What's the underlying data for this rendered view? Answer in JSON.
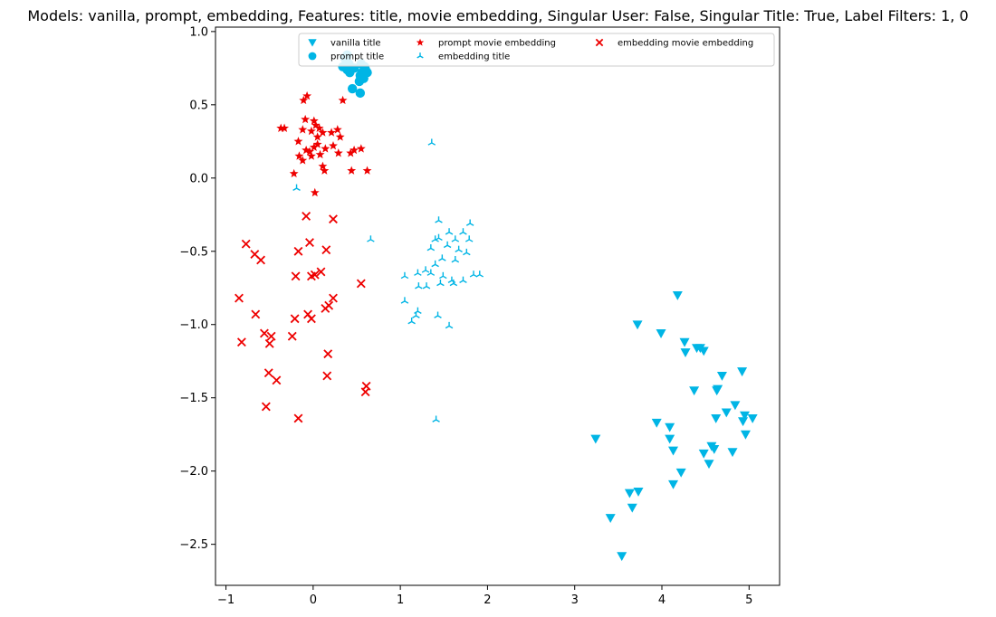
{
  "chart_data": {
    "type": "scatter",
    "title": "Models: vanilla, prompt, embedding, Features: title, movie embedding, Singular User: False, Singular Title: True, Label Filters: 1, 0",
    "xlabel": "",
    "ylabel": "",
    "xlim": [
      -1.12,
      5.35
    ],
    "ylim": [
      -2.78,
      1.03
    ],
    "xticks": [
      -1,
      0,
      1,
      2,
      3,
      4,
      5
    ],
    "xtick_labels": [
      "−1",
      "0",
      "1",
      "2",
      "3",
      "4",
      "5"
    ],
    "yticks": [
      0.5,
      0.0,
      -0.5,
      -1.0,
      -1.5,
      -2.0,
      -2.5
    ],
    "ytick_labels": [
      "0.5",
      "0.0",
      "−0.5",
      "−1.0",
      "−1.5",
      "−2.0",
      "−2.5"
    ],
    "yticks_extra": [
      1.0
    ],
    "ytick_labels_extra": [
      "1.0"
    ],
    "grid": false,
    "legend_position": "top-right",
    "legend_columns": 3,
    "series": [
      {
        "name": "vanilla title",
        "marker": "triangle-down",
        "color": "#00B5E5",
        "points": [
          [
            4.18,
            -0.8
          ],
          [
            3.72,
            -1.0
          ],
          [
            3.99,
            -1.06
          ],
          [
            4.26,
            -1.12
          ],
          [
            4.4,
            -1.16
          ],
          [
            4.44,
            -1.16
          ],
          [
            4.48,
            -1.18
          ],
          [
            4.27,
            -1.19
          ],
          [
            4.92,
            -1.32
          ],
          [
            4.69,
            -1.35
          ],
          [
            4.37,
            -1.45
          ],
          [
            4.64,
            -1.44
          ],
          [
            4.63,
            -1.45
          ],
          [
            4.84,
            -1.55
          ],
          [
            4.74,
            -1.6
          ],
          [
            4.95,
            -1.62
          ],
          [
            5.04,
            -1.64
          ],
          [
            4.62,
            -1.64
          ],
          [
            4.93,
            -1.66
          ],
          [
            3.94,
            -1.67
          ],
          [
            4.09,
            -1.7
          ],
          [
            4.96,
            -1.75
          ],
          [
            3.24,
            -1.78
          ],
          [
            4.09,
            -1.78
          ],
          [
            4.57,
            -1.83
          ],
          [
            4.6,
            -1.85
          ],
          [
            4.13,
            -1.86
          ],
          [
            4.81,
            -1.87
          ],
          [
            4.48,
            -1.88
          ],
          [
            4.54,
            -1.95
          ],
          [
            4.22,
            -2.01
          ],
          [
            4.13,
            -2.09
          ],
          [
            3.73,
            -2.14
          ],
          [
            3.63,
            -2.15
          ],
          [
            3.66,
            -2.25
          ],
          [
            3.41,
            -2.32
          ],
          [
            3.54,
            -2.58
          ]
        ]
      },
      {
        "name": "prompt title",
        "marker": "circle",
        "color": "#00B5E5",
        "points": [
          [
            0.36,
            0.82
          ],
          [
            0.38,
            0.8
          ],
          [
            0.41,
            0.78
          ],
          [
            0.34,
            0.76
          ],
          [
            0.39,
            0.74
          ],
          [
            0.42,
            0.72
          ],
          [
            0.55,
            0.78
          ],
          [
            0.59,
            0.76
          ],
          [
            0.6,
            0.74
          ],
          [
            0.56,
            0.72
          ],
          [
            0.54,
            0.7
          ],
          [
            0.58,
            0.68
          ],
          [
            0.53,
            0.66
          ],
          [
            0.47,
            0.75
          ],
          [
            0.45,
            0.61
          ],
          [
            0.54,
            0.58
          ],
          [
            0.62,
            0.72
          ],
          [
            0.39,
            0.84
          ]
        ]
      },
      {
        "name": "prompt movie embedding",
        "marker": "star",
        "color": "#EE0000",
        "points": [
          [
            -0.07,
            0.56
          ],
          [
            -0.11,
            0.53
          ],
          [
            0.34,
            0.53
          ],
          [
            -0.33,
            0.34
          ],
          [
            -0.37,
            0.34
          ],
          [
            0.01,
            0.39
          ],
          [
            -0.09,
            0.4
          ],
          [
            0.03,
            0.36
          ],
          [
            0.07,
            0.34
          ],
          [
            -0.12,
            0.33
          ],
          [
            -0.02,
            0.32
          ],
          [
            0.28,
            0.33
          ],
          [
            0.21,
            0.31
          ],
          [
            0.11,
            0.31
          ],
          [
            0.05,
            0.28
          ],
          [
            0.31,
            0.28
          ],
          [
            -0.17,
            0.25
          ],
          [
            0.05,
            0.23
          ],
          [
            0.01,
            0.21
          ],
          [
            0.23,
            0.22
          ],
          [
            0.14,
            0.2
          ],
          [
            -0.04,
            0.18
          ],
          [
            -0.08,
            0.19
          ],
          [
            0.55,
            0.2
          ],
          [
            0.47,
            0.19
          ],
          [
            0.43,
            0.17
          ],
          [
            0.29,
            0.17
          ],
          [
            -0.02,
            0.15
          ],
          [
            0.08,
            0.16
          ],
          [
            -0.16,
            0.15
          ],
          [
            -0.12,
            0.12
          ],
          [
            0.11,
            0.08
          ],
          [
            0.13,
            0.05
          ],
          [
            -0.22,
            0.03
          ],
          [
            0.44,
            0.05
          ],
          [
            0.62,
            0.05
          ],
          [
            0.02,
            -0.1
          ]
        ]
      },
      {
        "name": "embedding title",
        "marker": "tri-up",
        "color": "#00B5E5",
        "points": [
          [
            1.36,
            0.24
          ],
          [
            -0.19,
            -0.07
          ],
          [
            1.44,
            -0.29
          ],
          [
            1.8,
            -0.31
          ],
          [
            1.72,
            -0.37
          ],
          [
            1.56,
            -0.37
          ],
          [
            1.4,
            -0.42
          ],
          [
            1.44,
            -0.41
          ],
          [
            1.63,
            -0.42
          ],
          [
            1.79,
            -0.42
          ],
          [
            1.35,
            -0.48
          ],
          [
            1.54,
            -0.46
          ],
          [
            1.67,
            -0.49
          ],
          [
            1.76,
            -0.51
          ],
          [
            1.63,
            -0.56
          ],
          [
            1.48,
            -0.55
          ],
          [
            1.4,
            -0.59
          ],
          [
            1.29,
            -0.63
          ],
          [
            1.2,
            -0.65
          ],
          [
            1.35,
            -0.65
          ],
          [
            1.05,
            -0.67
          ],
          [
            1.49,
            -0.67
          ],
          [
            1.84,
            -0.66
          ],
          [
            1.91,
            -0.66
          ],
          [
            1.59,
            -0.7
          ],
          [
            1.61,
            -0.72
          ],
          [
            1.72,
            -0.7
          ],
          [
            1.46,
            -0.72
          ],
          [
            1.21,
            -0.74
          ],
          [
            1.3,
            -0.74
          ],
          [
            1.05,
            -0.84
          ],
          [
            1.2,
            -0.91
          ],
          [
            1.18,
            -0.94
          ],
          [
            1.43,
            -0.94
          ],
          [
            1.13,
            -0.98
          ],
          [
            1.56,
            -1.01
          ],
          [
            0.66,
            -0.42
          ],
          [
            1.41,
            -1.65
          ]
        ]
      },
      {
        "name": "embedding movie embedding",
        "marker": "x",
        "color": "#EE0000",
        "points": [
          [
            -0.08,
            -0.26
          ],
          [
            0.23,
            -0.28
          ],
          [
            -0.77,
            -0.45
          ],
          [
            -0.04,
            -0.44
          ],
          [
            0.15,
            -0.49
          ],
          [
            -0.67,
            -0.52
          ],
          [
            -0.17,
            -0.5
          ],
          [
            -0.6,
            -0.56
          ],
          [
            0.09,
            -0.64
          ],
          [
            -0.02,
            -0.67
          ],
          [
            0.02,
            -0.66
          ],
          [
            -0.2,
            -0.67
          ],
          [
            0.55,
            -0.72
          ],
          [
            0.23,
            -0.82
          ],
          [
            -0.85,
            -0.82
          ],
          [
            0.18,
            -0.87
          ],
          [
            0.14,
            -0.89
          ],
          [
            -0.66,
            -0.93
          ],
          [
            -0.06,
            -0.93
          ],
          [
            -0.02,
            -0.96
          ],
          [
            -0.21,
            -0.96
          ],
          [
            -0.56,
            -1.06
          ],
          [
            -0.48,
            -1.08
          ],
          [
            -0.24,
            -1.08
          ],
          [
            -0.5,
            -1.13
          ],
          [
            -0.82,
            -1.12
          ],
          [
            0.17,
            -1.2
          ],
          [
            -0.51,
            -1.33
          ],
          [
            0.16,
            -1.35
          ],
          [
            -0.42,
            -1.38
          ],
          [
            0.61,
            -1.42
          ],
          [
            0.6,
            -1.46
          ],
          [
            -0.54,
            -1.56
          ],
          [
            -0.17,
            -1.64
          ]
        ]
      }
    ]
  }
}
